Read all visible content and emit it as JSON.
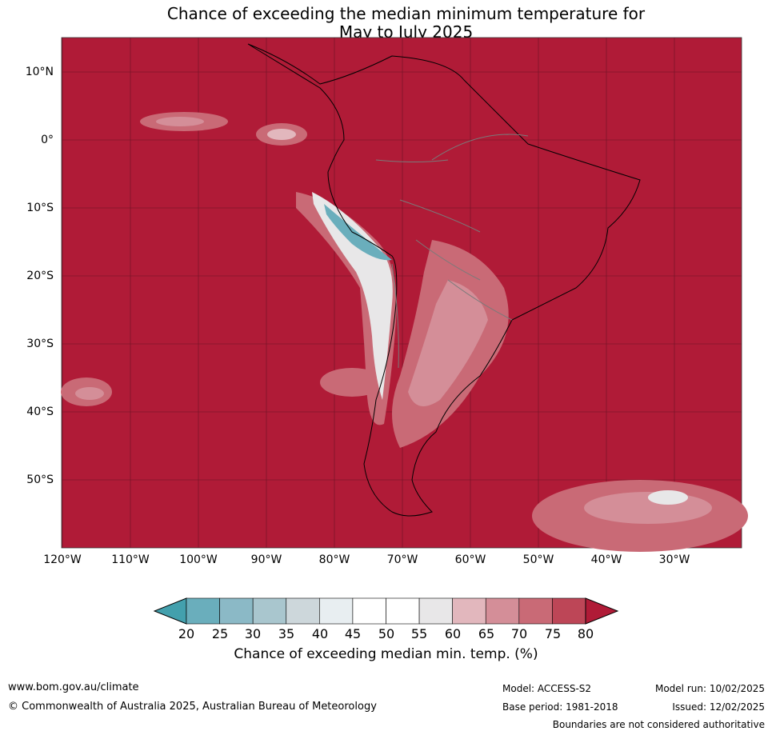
{
  "title": {
    "line1": "Chance of exceeding the median minimum temperature for",
    "line2": "May to July 2025"
  },
  "map": {
    "background_color": "#b01b37",
    "lat_labels": [
      "10°N",
      "0°",
      "10°S",
      "20°S",
      "30°S",
      "40°S",
      "50°S"
    ],
    "lon_labels": [
      "120°W",
      "110°W",
      "100°W",
      "90°W",
      "80°W",
      "70°W",
      "60°W",
      "50°W",
      "40°W",
      "30°W"
    ]
  },
  "colorbar": {
    "ticks": [
      "20",
      "25",
      "30",
      "35",
      "40",
      "45",
      "50",
      "55",
      "60",
      "65",
      "70",
      "75",
      "80"
    ],
    "colors": [
      "#43a0ad",
      "#6aaebc",
      "#8bb9c6",
      "#a9c6ce",
      "#cdd7db",
      "#e8eef1",
      "#ffffff",
      "#ffffff",
      "#e8e7e8",
      "#e2b7bd",
      "#d48e98",
      "#c96a76",
      "#bd4657",
      "#b01b37"
    ],
    "label": "Chance of exceeding median min. temp. (%)"
  },
  "footer": {
    "website": "www.bom.gov.au/climate",
    "copyright": "© Commonwealth of Australia 2025, Australian Bureau of Meteorology",
    "model": "Model: ACCESS-S2",
    "base_period": "Base period: 1981-2018",
    "model_run": "Model run: 10/02/2025",
    "issued": "Issued: 12/02/2025",
    "disclaimer": "Boundaries are not considered authoritative"
  }
}
